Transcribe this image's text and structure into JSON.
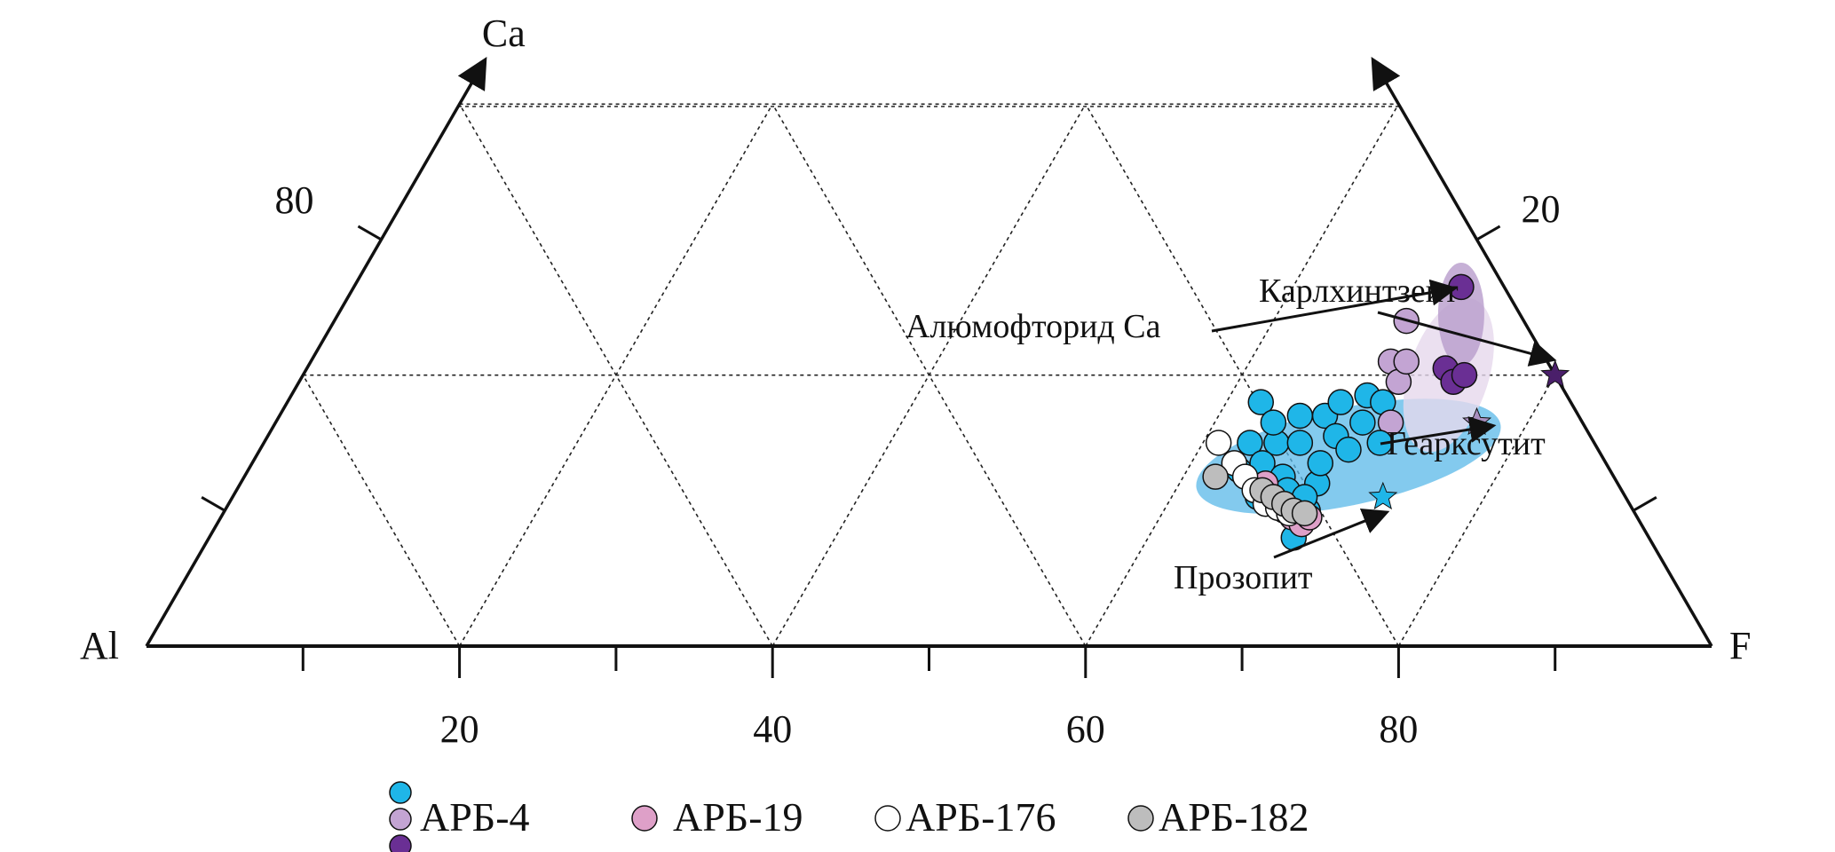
{
  "chart_data": {
    "type": "scatter",
    "subtype": "ternary",
    "axes": {
      "bottom_left_vertex": "Al",
      "top_vertex": "Ca",
      "bottom_right_vertex": "F"
    },
    "bottom_ticks": {
      "major": [
        "20",
        "40",
        "60",
        "80"
      ]
    },
    "left_ticks": {
      "labels": [
        "80"
      ]
    },
    "right_ticks": {
      "labels": [
        "20"
      ]
    },
    "grid": true,
    "legend": {
      "placement": "bottom",
      "entries": [
        "АРБ-4",
        "АРБ-19",
        "АРБ-176",
        "АРБ-182"
      ]
    },
    "series": [
      {
        "name": "АРБ-4",
        "colors": [
          "#1fb6e8",
          "#c3a4d3",
          "#6a2f94"
        ],
        "points": [
          {
            "x": 69.8,
            "y": 13.0
          },
          {
            "x": 70.5,
            "y": 15.0
          },
          {
            "x": 71.2,
            "y": 18.0
          },
          {
            "x": 72.2,
            "y": 15.0
          },
          {
            "x": 71.3,
            "y": 13.5
          },
          {
            "x": 72.6,
            "y": 12.5
          },
          {
            "x": 72.0,
            "y": 16.5
          },
          {
            "x": 71.0,
            "y": 11.0
          },
          {
            "x": 73.7,
            "y": 15.0
          },
          {
            "x": 73.7,
            "y": 17.0
          },
          {
            "x": 72.9,
            "y": 11.5
          },
          {
            "x": 74.2,
            "y": 10.0
          },
          {
            "x": 74.8,
            "y": 12.0
          },
          {
            "x": 75.0,
            "y": 13.5
          },
          {
            "x": 74.0,
            "y": 11.0
          },
          {
            "x": 73.3,
            "y": 8.0
          },
          {
            "x": 75.3,
            "y": 17.0
          },
          {
            "x": 76.0,
            "y": 15.5
          },
          {
            "x": 76.8,
            "y": 14.5
          },
          {
            "x": 76.3,
            "y": 18.0
          },
          {
            "x": 77.7,
            "y": 16.5
          },
          {
            "x": 78.0,
            "y": 18.5
          },
          {
            "x": 79.0,
            "y": 18.0
          },
          {
            "x": 79.5,
            "y": 16.5
          },
          {
            "x": 78.8,
            "y": 15.0
          },
          {
            "x": 79.5,
            "y": 21.0
          },
          {
            "x": 80.0,
            "y": 19.5
          },
          {
            "x": 80.5,
            "y": 21.0
          },
          {
            "x": 80.5,
            "y": 24.0
          },
          {
            "x": 83.0,
            "y": 20.5
          },
          {
            "x": 83.5,
            "y": 19.5
          },
          {
            "x": 84.2,
            "y": 20.0
          },
          {
            "x": 84.0,
            "y": 26.5
          }
        ]
      },
      {
        "name": "АРБ-19",
        "color": "#dea0c8",
        "points": [
          {
            "x": 71.5,
            "y": 12.0
          },
          {
            "x": 72.0,
            "y": 11.0
          },
          {
            "x": 72.7,
            "y": 10.0
          },
          {
            "x": 73.2,
            "y": 9.5
          },
          {
            "x": 73.8,
            "y": 9.0
          },
          {
            "x": 74.3,
            "y": 9.5
          }
        ]
      },
      {
        "name": "АРБ-176",
        "color": "#ffffff",
        "points": [
          {
            "x": 68.5,
            "y": 15.0
          },
          {
            "x": 69.5,
            "y": 13.5
          },
          {
            "x": 70.2,
            "y": 12.5
          },
          {
            "x": 70.8,
            "y": 11.5
          },
          {
            "x": 71.5,
            "y": 10.5
          },
          {
            "x": 72.3,
            "y": 10.2
          },
          {
            "x": 73.0,
            "y": 9.8
          }
        ]
      },
      {
        "name": "АРБ-182",
        "color": "#bdbdbd",
        "points": [
          {
            "x": 68.3,
            "y": 12.5
          },
          {
            "x": 71.3,
            "y": 11.5
          },
          {
            "x": 72.0,
            "y": 11.0
          },
          {
            "x": 72.7,
            "y": 10.5
          },
          {
            "x": 73.3,
            "y": 10.0
          },
          {
            "x": 74.0,
            "y": 9.8
          }
        ]
      }
    ],
    "fields": [
      {
        "name": "Прозопит",
        "color": "#5ab8e8"
      },
      {
        "name": "Гearксутит-field",
        "color": "#e6d8ec"
      },
      {
        "name": "Алюмофторид Ca",
        "color": "#b89ccc"
      }
    ],
    "annotations": [
      {
        "text": "Алюмофторид Ca",
        "target": {
          "x": 84.0,
          "y": 26.5
        }
      },
      {
        "text": "Карлхинтзеит",
        "star_color": "#4a1f6a",
        "star": {
          "x": 90.0,
          "y": 20.0
        }
      },
      {
        "text": "Геарксутит",
        "star_color": "#a98fc0",
        "star": {
          "x": 85.0,
          "y": 16.5
        }
      },
      {
        "text": "Прозопит",
        "star_color": "#1fb6e8",
        "star": {
          "x": 79.0,
          "y": 11.0
        }
      }
    ]
  }
}
